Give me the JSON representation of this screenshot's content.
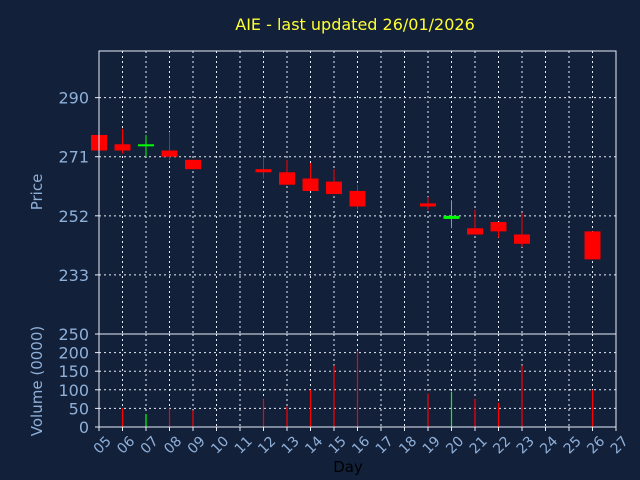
{
  "chart_data": {
    "type": "candlestick",
    "title": "AIE - last updated 26/01/2026",
    "xlabel": "Day",
    "x_tick_labels": [
      "05",
      "06",
      "07",
      "08",
      "09",
      "10",
      "11",
      "12",
      "13",
      "14",
      "15",
      "16",
      "17",
      "18",
      "19",
      "20",
      "21",
      "22",
      "23",
      "24",
      "25",
      "26",
      "27"
    ],
    "price_panel": {
      "ylabel": "Price",
      "ylim": [
        214,
        305
      ],
      "y_ticks": [
        233,
        252,
        271,
        290
      ],
      "grid": true,
      "candles": [
        {
          "day": "05",
          "open": 278,
          "high": 278,
          "low": 273,
          "close": 273,
          "color": "red"
        },
        {
          "day": "06",
          "open": 275,
          "high": 280,
          "low": 272,
          "close": 273,
          "color": "red"
        },
        {
          "day": "07",
          "open": 275,
          "high": 278,
          "low": 271,
          "close": 275,
          "color": "green"
        },
        {
          "day": "08",
          "open": 273,
          "high": 279,
          "low": 270,
          "close": 271,
          "color": "red"
        },
        {
          "day": "09",
          "open": 270,
          "high": 270,
          "low": 267,
          "close": 267,
          "color": "red"
        },
        {
          "day": "12",
          "open": 267,
          "high": 271,
          "low": 264,
          "close": 266,
          "color": "red"
        },
        {
          "day": "13",
          "open": 266,
          "high": 270,
          "low": 262,
          "close": 262,
          "color": "red"
        },
        {
          "day": "14",
          "open": 264,
          "high": 269,
          "low": 260,
          "close": 260,
          "color": "red"
        },
        {
          "day": "15",
          "open": 263,
          "high": 267,
          "low": 259,
          "close": 259,
          "color": "red"
        },
        {
          "day": "16",
          "open": 260,
          "high": 262,
          "low": 254,
          "close": 255,
          "color": "red"
        },
        {
          "day": "19",
          "open": 256,
          "high": 258,
          "low": 254,
          "close": 255,
          "color": "red"
        },
        {
          "day": "20",
          "open": 251,
          "high": 257,
          "low": 248,
          "close": 252,
          "color": "green"
        },
        {
          "day": "21",
          "open": 248,
          "high": 254,
          "low": 246,
          "close": 246,
          "color": "red"
        },
        {
          "day": "22",
          "open": 250,
          "high": 250,
          "low": 245,
          "close": 247,
          "color": "red"
        },
        {
          "day": "23",
          "open": 246,
          "high": 253,
          "low": 242,
          "close": 243,
          "color": "red"
        },
        {
          "day": "26",
          "open": 247,
          "high": 247,
          "low": 238,
          "close": 238,
          "color": "red"
        }
      ]
    },
    "volume_panel": {
      "ylabel": "Volume (0000)",
      "ylim": [
        0,
        250
      ],
      "y_ticks": [
        0,
        50,
        100,
        150,
        200,
        250
      ],
      "grid": true,
      "bars": [
        {
          "day": "06",
          "value": 50,
          "color": "red"
        },
        {
          "day": "07",
          "value": 35,
          "color": "green"
        },
        {
          "day": "08",
          "value": 50,
          "color": "red"
        },
        {
          "day": "09",
          "value": 45,
          "color": "red"
        },
        {
          "day": "12",
          "value": 75,
          "color": "red"
        },
        {
          "day": "13",
          "value": 55,
          "color": "red"
        },
        {
          "day": "14",
          "value": 100,
          "color": "red"
        },
        {
          "day": "15",
          "value": 165,
          "color": "red"
        },
        {
          "day": "16",
          "value": 205,
          "color": "red"
        },
        {
          "day": "19",
          "value": 90,
          "color": "red"
        },
        {
          "day": "20",
          "value": 95,
          "color": "green"
        },
        {
          "day": "21",
          "value": 75,
          "color": "red"
        },
        {
          "day": "22",
          "value": 65,
          "color": "red"
        },
        {
          "day": "23",
          "value": 165,
          "color": "red"
        },
        {
          "day": "26",
          "value": 100,
          "color": "red"
        }
      ]
    },
    "colors": {
      "background": "#12203a",
      "up": "#00ff00",
      "down": "#ff0000",
      "title": "#ffff33",
      "axis_text": "#8fb0d9",
      "border": "#e8eef8"
    }
  }
}
